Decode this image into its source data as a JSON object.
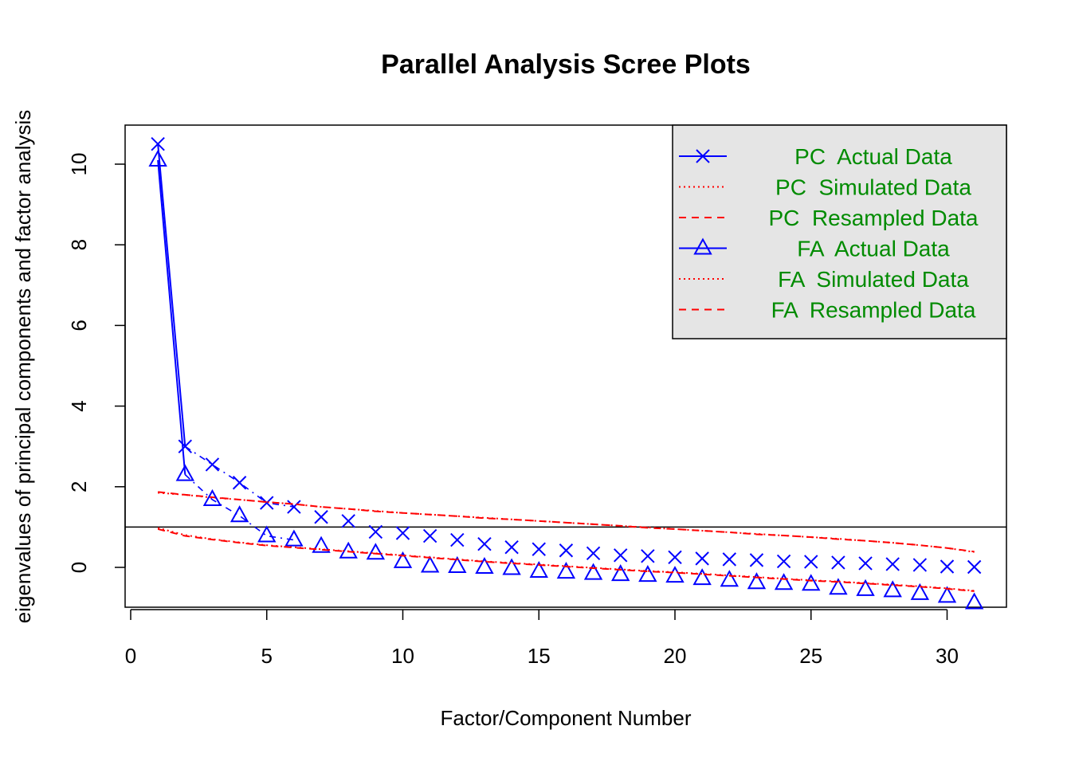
{
  "chart_data": {
    "type": "line",
    "title": "Parallel Analysis Scree Plots",
    "xlabel": "Factor/Component Number",
    "ylabel": "eigenvalues of principal components and factor analysis",
    "xlim": [
      0,
      31
    ],
    "ylim": [
      -1,
      11
    ],
    "x_ticks": [
      0,
      5,
      10,
      15,
      20,
      25,
      30
    ],
    "y_ticks": [
      0,
      2,
      4,
      6,
      8,
      10
    ],
    "reference_line": {
      "y": 1
    },
    "x": [
      1,
      2,
      3,
      4,
      5,
      6,
      7,
      8,
      9,
      10,
      11,
      12,
      13,
      14,
      15,
      16,
      17,
      18,
      19,
      20,
      21,
      22,
      23,
      24,
      25,
      26,
      27,
      28,
      29,
      30,
      31
    ],
    "series": [
      {
        "name": "PC  Actual Data",
        "color": "#0000ff",
        "line": "solid",
        "marker": "x",
        "values": [
          10.5,
          3.0,
          2.55,
          2.1,
          1.6,
          1.5,
          1.25,
          1.15,
          0.88,
          0.85,
          0.78,
          0.68,
          0.58,
          0.5,
          0.45,
          0.42,
          0.35,
          0.3,
          0.28,
          0.25,
          0.22,
          0.2,
          0.18,
          0.15,
          0.14,
          0.12,
          0.1,
          0.08,
          0.06,
          0.02,
          0.01
        ]
      },
      {
        "name": "PC  Simulated Data",
        "color": "#ff0000",
        "line": "dotted",
        "marker": "none",
        "values": [
          1.85,
          1.8,
          1.73,
          1.68,
          1.62,
          1.57,
          1.5,
          1.45,
          1.4,
          1.35,
          1.31,
          1.27,
          1.23,
          1.19,
          1.15,
          1.11,
          1.07,
          1.03,
          0.99,
          0.95,
          0.91,
          0.87,
          0.83,
          0.79,
          0.75,
          0.71,
          0.66,
          0.61,
          0.55,
          0.48,
          0.38
        ]
      },
      {
        "name": "PC  Resampled Data",
        "color": "#ff0000",
        "line": "dashed",
        "marker": "none",
        "values": [
          1.87,
          1.8,
          1.74,
          1.68,
          1.62,
          1.57,
          1.5,
          1.45,
          1.39,
          1.35,
          1.31,
          1.27,
          1.22,
          1.19,
          1.15,
          1.11,
          1.07,
          1.03,
          0.98,
          0.95,
          0.91,
          0.87,
          0.82,
          0.79,
          0.75,
          0.7,
          0.66,
          0.61,
          0.55,
          0.48,
          0.39
        ]
      },
      {
        "name": "FA  Actual Data",
        "color": "#0000ff",
        "line": "solid",
        "marker": "triangle",
        "values": [
          10.1,
          2.3,
          1.68,
          1.28,
          0.78,
          0.68,
          0.52,
          0.38,
          0.35,
          0.14,
          0.03,
          0.02,
          0.0,
          -0.03,
          -0.1,
          -0.12,
          -0.15,
          -0.18,
          -0.2,
          -0.22,
          -0.28,
          -0.32,
          -0.38,
          -0.4,
          -0.42,
          -0.52,
          -0.55,
          -0.58,
          -0.65,
          -0.72,
          -0.88
        ]
      },
      {
        "name": "FA  Simulated Data",
        "color": "#ff0000",
        "line": "dotted",
        "marker": "none",
        "values": [
          0.98,
          0.8,
          0.7,
          0.62,
          0.55,
          0.5,
          0.45,
          0.4,
          0.35,
          0.3,
          0.25,
          0.2,
          0.15,
          0.11,
          0.07,
          0.03,
          -0.01,
          -0.05,
          -0.09,
          -0.12,
          -0.16,
          -0.2,
          -0.24,
          -0.28,
          -0.32,
          -0.35,
          -0.39,
          -0.43,
          -0.47,
          -0.52,
          -0.58
        ]
      },
      {
        "name": "FA  Resampled Data",
        "color": "#ff0000",
        "line": "dashed",
        "marker": "none",
        "values": [
          0.95,
          0.78,
          0.69,
          0.61,
          0.54,
          0.49,
          0.44,
          0.39,
          0.34,
          0.29,
          0.24,
          0.19,
          0.14,
          0.1,
          0.06,
          0.02,
          -0.02,
          -0.06,
          -0.1,
          -0.13,
          -0.17,
          -0.21,
          -0.25,
          -0.29,
          -0.33,
          -0.36,
          -0.4,
          -0.44,
          -0.48,
          -0.53,
          -0.59
        ]
      }
    ],
    "legend": {
      "position": "top-right",
      "background": "#e5e5e5",
      "text_color": "#008b00"
    },
    "grid": false
  }
}
